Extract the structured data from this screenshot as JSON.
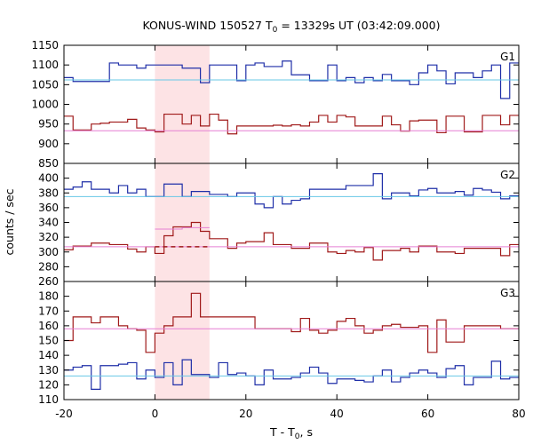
{
  "chart_data": {
    "type": "line",
    "title": {
      "pre": "KONUS-WIND 150527 T",
      "sub": "0",
      "post": " = 13329s UT (03:42:09.000)"
    },
    "xlabel": {
      "pre": "T - T",
      "sub": "0",
      "post": ", s"
    },
    "ylabel": "counts / sec",
    "xlim": [
      -20,
      80
    ],
    "xticks": [
      -20,
      0,
      20,
      40,
      60,
      80
    ],
    "shaded_interval": {
      "x": [
        0,
        12
      ],
      "color": "#fde3e5"
    },
    "colors": {
      "blue": "#1f2fa8",
      "red": "#a01a1a",
      "cyan": "#67c7e6",
      "pink": "#e57fd3"
    },
    "panels": [
      {
        "label": "G1",
        "ylim": [
          850,
          1150
        ],
        "yticks": [
          850,
          900,
          950,
          1000,
          1050,
          1100,
          1150
        ],
        "bin_edges": [
          -20,
          -18,
          -16,
          -14,
          -12,
          -10,
          -8,
          -6,
          -4,
          -2,
          0,
          2,
          4,
          6,
          8,
          10,
          12,
          14,
          16,
          18,
          20,
          22,
          24,
          26,
          28,
          30,
          32,
          34,
          36,
          38,
          40,
          42,
          44,
          46,
          48,
          50,
          52,
          54,
          56,
          58,
          60,
          62,
          64,
          66,
          68,
          70,
          72,
          74,
          76,
          78,
          80
        ],
        "series": [
          {
            "color": "blue",
            "values": [
              1068,
              1058,
              1058,
              1058,
              1058,
              1105,
              1100,
              1100,
              1092,
              1100,
              1100,
              1100,
              1100,
              1092,
              1092,
              1055,
              1100,
              1100,
              1100,
              1060,
              1100,
              1105,
              1096,
              1096,
              1110,
              1075,
              1075,
              1060,
              1060,
              1100,
              1060,
              1068,
              1055,
              1068,
              1060,
              1076,
              1060,
              1060,
              1050,
              1080,
              1100,
              1085,
              1052,
              1080,
              1080,
              1068,
              1085,
              1100,
              1015,
              1105
            ]
          },
          {
            "color": "red",
            "values": [
              970,
              935,
              935,
              950,
              952,
              955,
              955,
              962,
              940,
              935,
              930,
              975,
              975,
              950,
              972,
              945,
              975,
              960,
              925,
              945,
              945,
              945,
              945,
              947,
              945,
              948,
              945,
              955,
              972,
              955,
              972,
              968,
              945,
              945,
              945,
              970,
              948,
              932,
              958,
              960,
              960,
              928,
              970,
              970,
              930,
              930,
              972,
              972,
              948,
              972
            ]
          },
          {
            "color": "cyan",
            "values": [
              1062
            ]
          },
          {
            "color": "pink",
            "values": [
              933
            ]
          }
        ]
      },
      {
        "label": "G2",
        "ylim": [
          260,
          420
        ],
        "yticks": [
          260,
          280,
          300,
          320,
          340,
          360,
          380,
          400
        ],
        "bin_edges": [
          -20,
          -18,
          -16,
          -14,
          -12,
          -10,
          -8,
          -6,
          -4,
          -2,
          0,
          2,
          4,
          6,
          8,
          10,
          12,
          14,
          16,
          18,
          20,
          22,
          24,
          26,
          28,
          30,
          32,
          34,
          36,
          38,
          40,
          42,
          44,
          46,
          48,
          50,
          52,
          54,
          56,
          58,
          60,
          62,
          64,
          66,
          68,
          70,
          72,
          74,
          76,
          78,
          80
        ],
        "series": [
          {
            "color": "blue",
            "values": [
              385,
              388,
              395,
              385,
              385,
              380,
              390,
              380,
              385,
              375,
              375,
              392,
              392,
              375,
              382,
              382,
              378,
              378,
              375,
              380,
              380,
              365,
              360,
              375,
              365,
              370,
              372,
              385,
              385,
              385,
              385,
              390,
              390,
              390,
              406,
              372,
              380,
              380,
              376,
              384,
              386,
              380,
              380,
              382,
              377,
              386,
              384,
              381,
              372,
              376
            ]
          },
          {
            "color": "red",
            "values": [
              303,
              308,
              308,
              312,
              312,
              310,
              310,
              304,
              300,
              307,
              298,
              322,
              334,
              334,
              340,
              328,
              318,
              318,
              305,
              312,
              314,
              314,
              326,
              310,
              310,
              305,
              305,
              312,
              312,
              300,
              298,
              302,
              300,
              306,
              289,
              302,
              302,
              305,
              300,
              308,
              308,
              300,
              300,
              298,
              305,
              305,
              305,
              305,
              295,
              310
            ]
          },
          {
            "color": "cyan",
            "values": [
              375
            ]
          },
          {
            "color": "pink",
            "values": [
              307
            ]
          },
          {
            "color": "pink",
            "values": [
              331,
              333
            ]
          },
          {
            "color": "red",
            "values": [
              307
            ]
          }
        ]
      },
      {
        "label": "G3",
        "ylim": [
          110,
          190
        ],
        "yticks": [
          110,
          120,
          130,
          140,
          150,
          160,
          170,
          180
        ],
        "bin_edges": [
          -20,
          -18,
          -16,
          -14,
          -12,
          -10,
          -8,
          -6,
          -4,
          -2,
          0,
          2,
          4,
          6,
          8,
          10,
          12,
          14,
          16,
          18,
          20,
          22,
          24,
          26,
          28,
          30,
          32,
          34,
          36,
          38,
          40,
          42,
          44,
          46,
          48,
          50,
          52,
          54,
          56,
          58,
          60,
          62,
          64,
          66,
          68,
          70,
          72,
          74,
          76,
          78,
          80
        ],
        "series": [
          {
            "color": "blue",
            "values": [
              130,
              132,
              133,
              117,
              133,
              133,
              134,
              135,
              124,
              130,
              125,
              135,
              120,
              137,
              127,
              127,
              125,
              135,
              127,
              128,
              126,
              120,
              130,
              124,
              124,
              125,
              128,
              132,
              128,
              121,
              124,
              124,
              123,
              122,
              126,
              130,
              122,
              125,
              128,
              130,
              128,
              125,
              131,
              133,
              120,
              125,
              125,
              136,
              124,
              125
            ]
          },
          {
            "color": "red",
            "values": [
              150,
              166,
              166,
              162,
              166,
              166,
              160,
              158,
              157,
              142,
              155,
              160,
              166,
              166,
              182,
              166,
              166,
              166,
              166,
              166,
              166,
              158,
              158,
              158,
              158,
              156,
              165,
              157,
              155,
              157,
              163,
              165,
              160,
              155,
              157,
              160,
              161,
              159,
              159,
              160,
              142,
              164,
              149,
              149,
              160,
              160,
              160,
              160,
              158,
              158
            ]
          },
          {
            "color": "cyan",
            "values": [
              126
            ]
          },
          {
            "color": "pink",
            "values": [
              158
            ]
          }
        ]
      }
    ]
  }
}
